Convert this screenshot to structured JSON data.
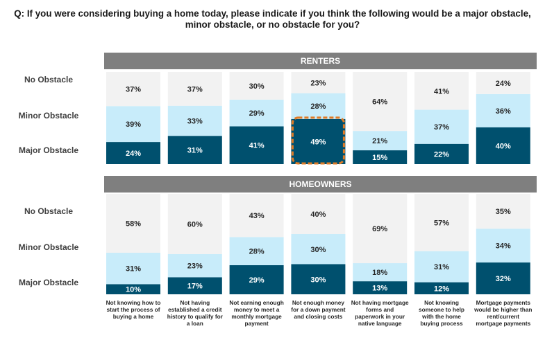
{
  "title": "Q: If you were considering buying a home today, please indicate if you think the following would be a major obstacle, minor obstacle, or no obstacle for you?",
  "row_labels": {
    "no_obstacle": "No Obstacle",
    "minor_obstacle": "Minor Obstacle",
    "major_obstacle": "Major Obstacle"
  },
  "colors": {
    "major": "#00506e",
    "minor": "#c8ecfa",
    "none": "#f2f2f2",
    "header": "#7f7f7f",
    "highlight": "#e07b26"
  },
  "chart_data": {
    "type": "bar",
    "stacked": true,
    "categories": [
      "Not knowing how to start the process of buying a home",
      "Not having established a credit history to qualify for a loan",
      "Not earning enough money to meet a monthly mortgage payment",
      "Not enough money for a down payment and closing costs",
      "Not having mortgage forms and paperwork in your native language",
      "Not knowing someone to help with the home buying process",
      "Mortgage payments would be higher than rent/current mortgage payments"
    ],
    "panels": [
      {
        "name": "RENTERS",
        "series": [
          {
            "name": "Major Obstacle",
            "values": [
              24,
              31,
              41,
              49,
              15,
              22,
              40
            ]
          },
          {
            "name": "Minor Obstacle",
            "values": [
              39,
              33,
              29,
              28,
              21,
              37,
              36
            ]
          },
          {
            "name": "No Obstacle",
            "values": [
              37,
              37,
              30,
              23,
              64,
              41,
              24
            ]
          }
        ],
        "highlight_index": 3
      },
      {
        "name": "HOMEOWNERS",
        "series": [
          {
            "name": "Major Obstacle",
            "values": [
              10,
              17,
              29,
              30,
              13,
              12,
              32
            ]
          },
          {
            "name": "Minor Obstacle",
            "values": [
              31,
              23,
              28,
              30,
              18,
              31,
              34
            ]
          },
          {
            "name": "No Obstacle",
            "values": [
              58,
              60,
              43,
              40,
              69,
              57,
              35
            ]
          }
        ],
        "highlight_index": null
      }
    ],
    "value_suffix": "%",
    "ylim": [
      0,
      100
    ]
  }
}
